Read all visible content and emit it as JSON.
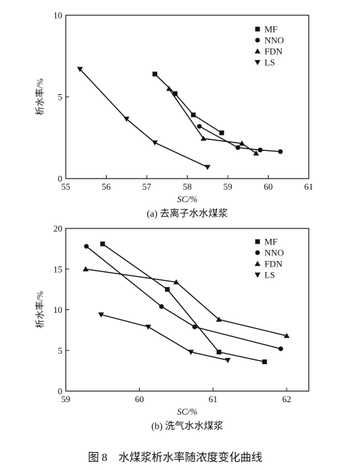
{
  "figure_caption": "图 8　水煤浆析水率随浓度变化曲线",
  "chart_data": [
    {
      "type": "line",
      "caption": "(a) 去离子水水煤浆",
      "xlabel": "SC/%",
      "ylabel": "析水率/%",
      "xlim": [
        55,
        61
      ],
      "ylim": [
        0,
        10
      ],
      "xticks": [
        55,
        56,
        57,
        58,
        59,
        60,
        61
      ],
      "yticks": [
        0,
        5,
        10
      ],
      "legend_position": "top-right",
      "grid": false,
      "series": [
        {
          "name": "MF",
          "marker": "square",
          "x": [
            57.2,
            57.7,
            58.15,
            58.85
          ],
          "y": [
            6.4,
            5.2,
            3.9,
            2.8
          ]
        },
        {
          "name": "NNO",
          "marker": "circle",
          "x": [
            58.3,
            59.25,
            59.8,
            60.3
          ],
          "y": [
            3.2,
            1.9,
            1.75,
            1.65
          ]
        },
        {
          "name": "FDN",
          "marker": "triangle-up",
          "x": [
            57.55,
            58.4,
            59.35,
            59.7
          ],
          "y": [
            5.5,
            2.45,
            2.15,
            1.55
          ]
        },
        {
          "name": "LS",
          "marker": "triangle-down",
          "x": [
            55.35,
            56.5,
            57.2,
            58.5
          ],
          "y": [
            6.7,
            3.65,
            2.2,
            0.7
          ]
        }
      ]
    },
    {
      "type": "line",
      "caption": "(b) 洗气水水煤浆",
      "xlabel": "SC/%",
      "ylabel": "析水率/%",
      "xlim": [
        59,
        62.3
      ],
      "ylim": [
        0,
        20
      ],
      "xticks": [
        59,
        60,
        61,
        62
      ],
      "yticks": [
        0,
        5,
        10,
        15,
        20
      ],
      "legend_position": "top-right",
      "grid": false,
      "series": [
        {
          "name": "MF",
          "marker": "square",
          "x": [
            59.5,
            60.38,
            61.08,
            61.7
          ],
          "y": [
            18.1,
            12.5,
            4.8,
            3.6
          ]
        },
        {
          "name": "NNO",
          "marker": "circle",
          "x": [
            59.28,
            60.3,
            60.75,
            61.92
          ],
          "y": [
            17.8,
            10.4,
            7.9,
            5.2
          ]
        },
        {
          "name": "FDN",
          "marker": "triangle-up",
          "x": [
            59.27,
            60.5,
            61.08,
            62.0
          ],
          "y": [
            15.0,
            13.4,
            8.8,
            6.8
          ]
        },
        {
          "name": "LS",
          "marker": "triangle-down",
          "x": [
            59.48,
            60.12,
            60.7,
            61.2
          ],
          "y": [
            9.4,
            7.9,
            4.8,
            3.8
          ]
        }
      ]
    }
  ]
}
